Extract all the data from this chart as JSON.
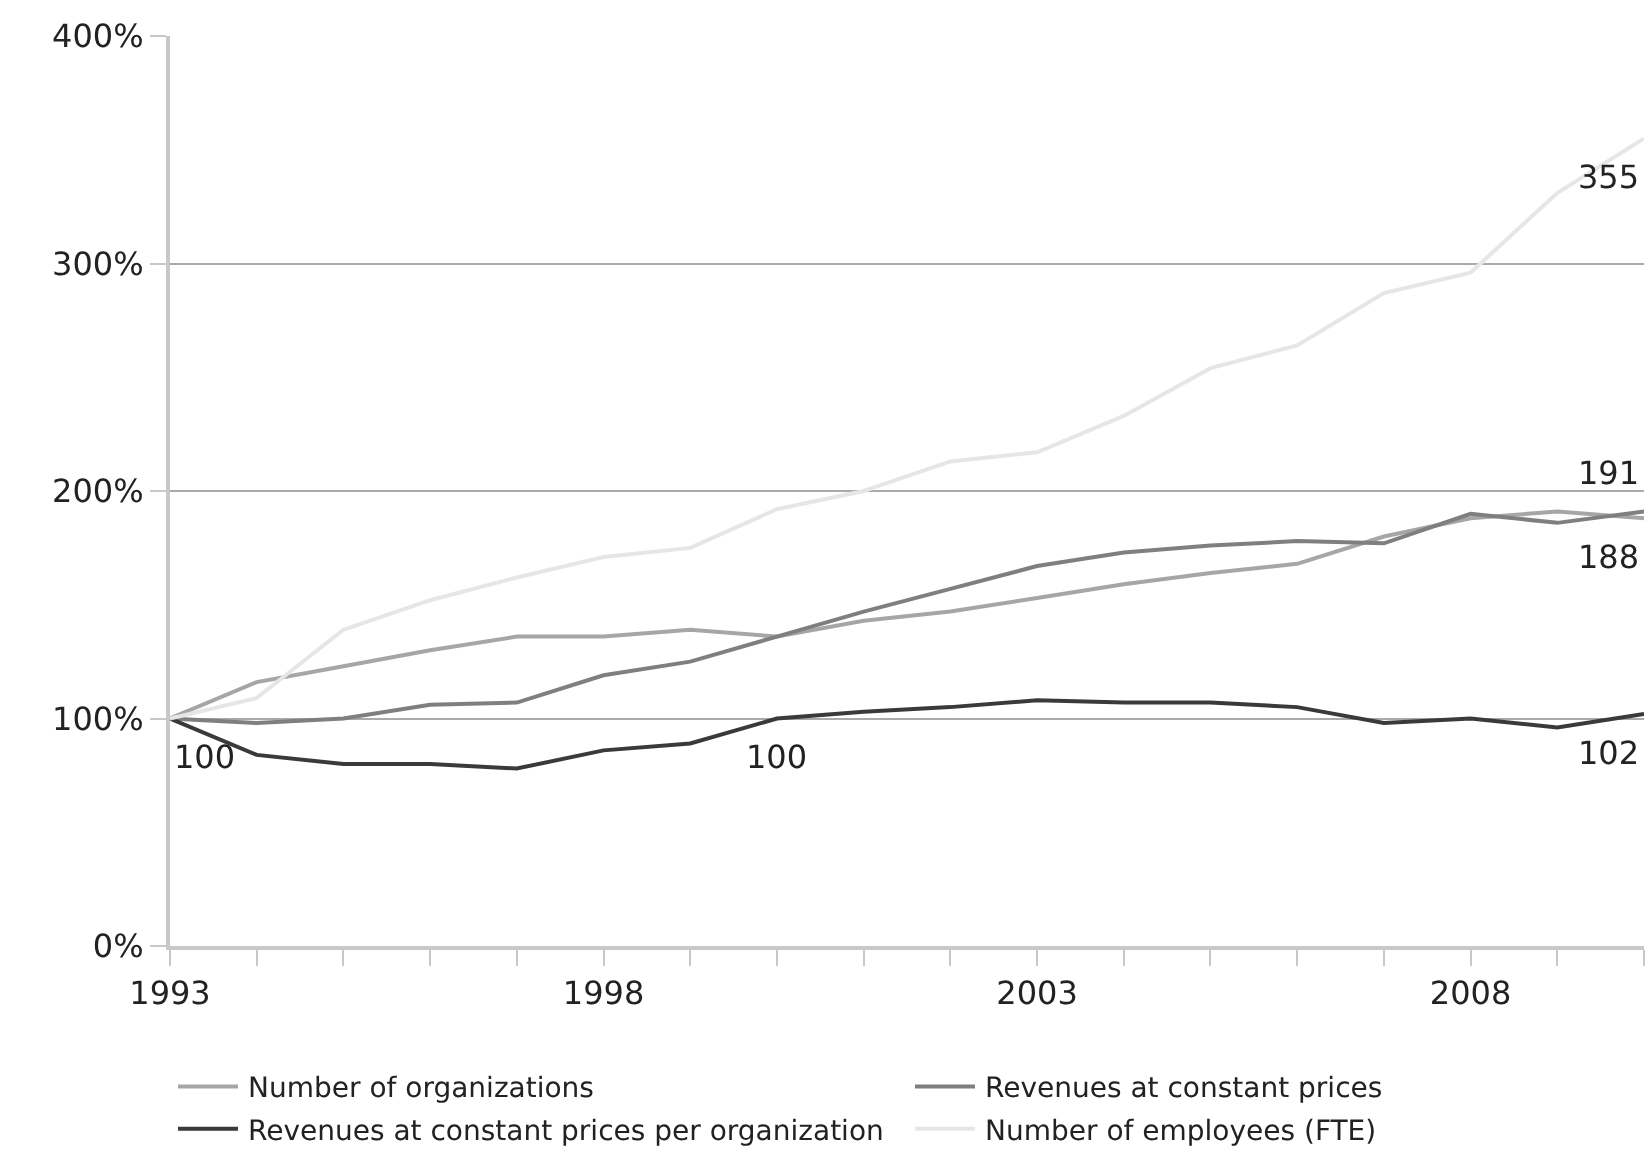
{
  "chart_data": {
    "type": "line",
    "x": [
      1993,
      1994,
      1995,
      1996,
      1997,
      1998,
      1999,
      2000,
      2001,
      2002,
      2003,
      2004,
      2005,
      2006,
      2007,
      2008,
      2009,
      2010
    ],
    "series": [
      {
        "name": "Number of organizations",
        "color": "#a6a6a6",
        "values": [
          100,
          116,
          123,
          130,
          136,
          136,
          139,
          136,
          143,
          147,
          153,
          159,
          164,
          168,
          180,
          188,
          191,
          188
        ]
      },
      {
        "name": "Revenues at constant prices",
        "color": "#7f7f7f",
        "values": [
          100,
          98,
          100,
          106,
          107,
          119,
          125,
          136,
          147,
          157,
          167,
          173,
          176,
          178,
          177,
          190,
          186,
          191
        ]
      },
      {
        "name": "Revenues at constant prices per organization",
        "color": "#3a3a3a",
        "values": [
          100,
          84,
          80,
          80,
          78,
          86,
          89,
          100,
          103,
          105,
          108,
          107,
          107,
          105,
          98,
          100,
          96,
          102
        ]
      },
      {
        "name": "Number of employees (FTE)",
        "color": "#e6e6e6",
        "values": [
          100,
          109,
          139,
          152,
          162,
          171,
          175,
          192,
          200,
          213,
          217,
          233,
          254,
          264,
          287,
          296,
          331,
          355
        ]
      }
    ],
    "xlim": [
      1993,
      2010
    ],
    "xticks": [
      1993,
      {
        "value": 1994,
        "label": null
      },
      {
        "value": 1995,
        "label": null
      },
      {
        "value": 1996,
        "label": null
      },
      {
        "value": 1997,
        "label": null
      },
      1998,
      {
        "value": 1999,
        "label": null
      },
      {
        "value": 2000,
        "label": null
      },
      {
        "value": 2001,
        "label": null
      },
      {
        "value": 2002,
        "label": null
      },
      2003,
      {
        "value": 2004,
        "label": null
      },
      {
        "value": 2005,
        "label": null
      },
      {
        "value": 2006,
        "label": null
      },
      {
        "value": 2007,
        "label": null
      },
      2008,
      {
        "value": 2009,
        "label": null
      },
      {
        "value": 2010,
        "label": null
      }
    ],
    "ylim": [
      0,
      400
    ],
    "yticks": [
      {
        "value": 0,
        "label": "0%"
      },
      {
        "value": 100,
        "label": "100%"
      },
      {
        "value": 200,
        "label": "200%"
      },
      {
        "value": 300,
        "label": "300%"
      },
      {
        "value": 400,
        "label": "400%"
      }
    ],
    "grid": "y",
    "legend": "bottom",
    "marker": "none",
    "line_style": "solid",
    "annotations": [
      {
        "text": "100",
        "x": 1993,
        "y": 100
      },
      {
        "text": "100",
        "x": 2000,
        "y": 100
      },
      {
        "text": "355",
        "x": 2010,
        "y": 355
      },
      {
        "text": "191",
        "x": 2010,
        "y": 191
      },
      {
        "text": "188",
        "x": 2010,
        "y": 188
      },
      {
        "text": "102",
        "x": 2010,
        "y": 102
      }
    ]
  }
}
